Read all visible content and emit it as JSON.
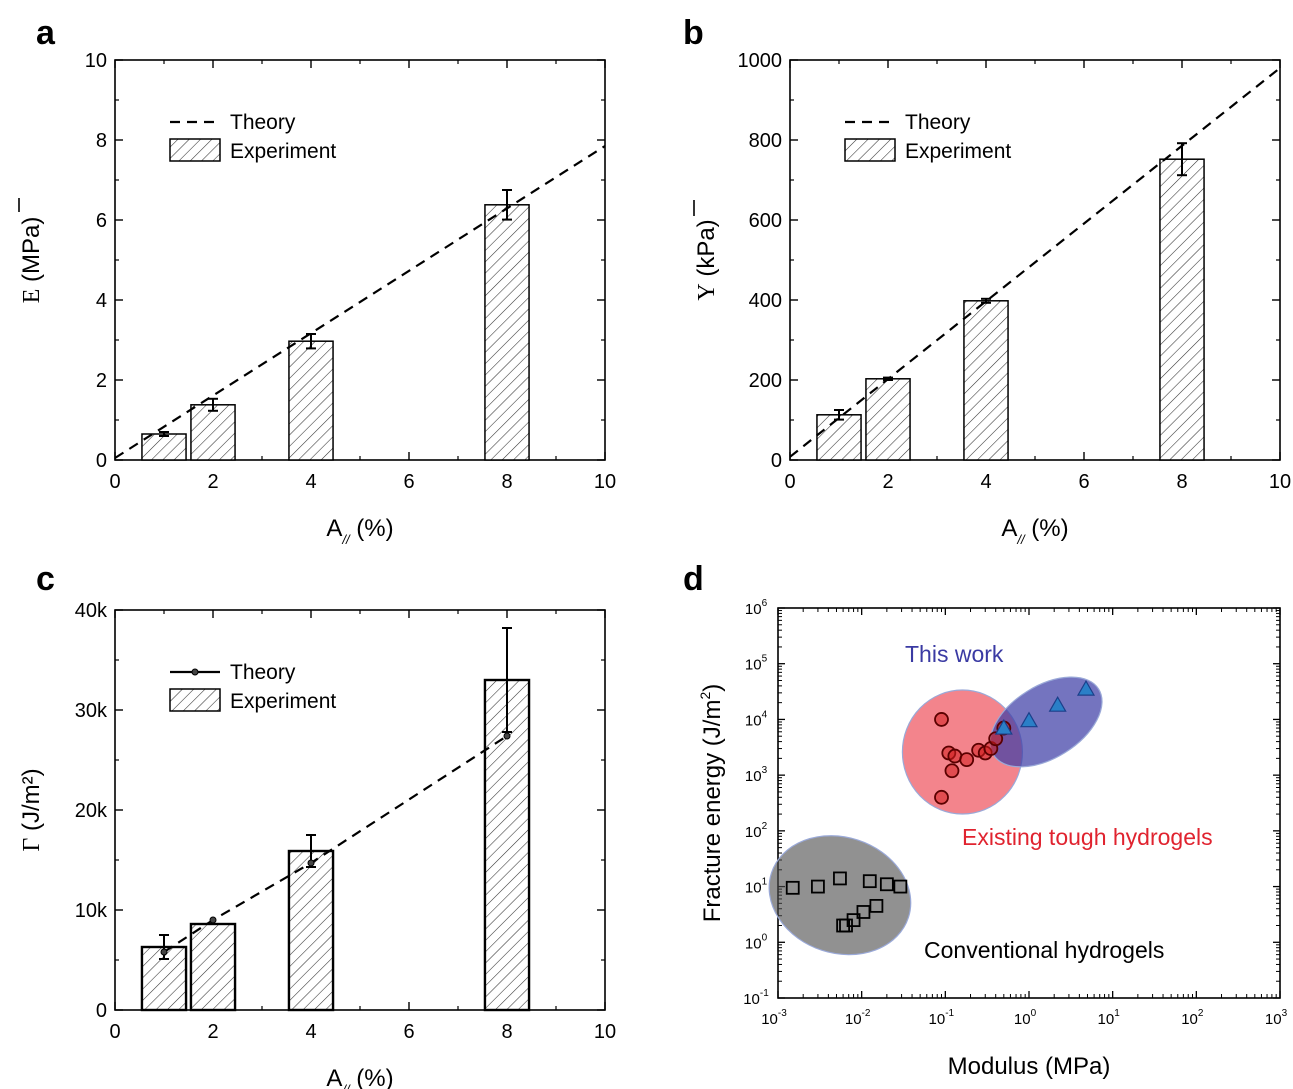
{
  "chart_data": [
    {
      "panel": "a",
      "type": "bar",
      "x": [
        1,
        2,
        4,
        8
      ],
      "values": [
        0.65,
        1.38,
        2.97,
        6.38
      ],
      "errors": [
        0.05,
        0.15,
        0.18,
        0.37
      ],
      "ylabel_symbol": "E",
      "ylabel_unit": " (MPa)",
      "xlabel_main": "A",
      "xlabel_sub": "//",
      "xlabel_unit": " (%)",
      "xlim": [
        0,
        10
      ],
      "ylim": [
        0,
        10
      ],
      "xticks": [
        0,
        2,
        4,
        6,
        8,
        10
      ],
      "yticks": [
        0,
        2,
        4,
        6,
        8,
        10
      ],
      "ytick_labels": [
        "0",
        "2",
        "4",
        "6",
        "8",
        "10"
      ],
      "theory": {
        "x": [
          0,
          10
        ],
        "y": [
          0.05,
          7.85
        ]
      },
      "legend": {
        "theory": "Theory",
        "experiment": "Experiment",
        "theory_marker": false
      }
    },
    {
      "panel": "b",
      "type": "bar",
      "x": [
        1,
        2,
        4,
        8
      ],
      "values": [
        113,
        203,
        398,
        752
      ],
      "errors": [
        12,
        3,
        5,
        40
      ],
      "ylabel_symbol": "Y",
      "ylabel_unit": " (kPa)",
      "xlabel_main": "A",
      "xlabel_sub": "//",
      "xlabel_unit": " (%)",
      "xlim": [
        0,
        10
      ],
      "ylim": [
        0,
        1000
      ],
      "xticks": [
        0,
        2,
        4,
        6,
        8,
        10
      ],
      "yticks": [
        0,
        200,
        400,
        600,
        800,
        1000
      ],
      "ytick_labels": [
        "0",
        "200",
        "400",
        "600",
        "800",
        "1000"
      ],
      "theory": {
        "x": [
          0,
          10
        ],
        "y": [
          8,
          980
        ]
      },
      "legend": {
        "theory": "Theory",
        "experiment": "Experiment",
        "theory_marker": false
      }
    },
    {
      "panel": "c",
      "type": "bar",
      "x": [
        1,
        2,
        4,
        8
      ],
      "values": [
        6300,
        8600,
        15900,
        33000
      ],
      "errors": [
        1200,
        0,
        1600,
        5200
      ],
      "ylabel_symbol": "Γ",
      "ylabel_unit": " (J/m²)",
      "xlabel_main": "A",
      "xlabel_sub": "//",
      "xlabel_unit": " (%)",
      "xlim": [
        0,
        10
      ],
      "ylim": [
        0,
        40000
      ],
      "xticks": [
        0,
        2,
        4,
        6,
        8,
        10
      ],
      "yticks": [
        0,
        10000,
        20000,
        30000,
        40000
      ],
      "ytick_labels": [
        "0",
        "10k",
        "20k",
        "30k",
        "40k"
      ],
      "theory": {
        "x": [
          1,
          2,
          4,
          8
        ],
        "y": [
          5800,
          9000,
          14700,
          27400
        ]
      },
      "legend": {
        "theory": "Theory",
        "experiment": "Experiment",
        "theory_marker": true
      }
    },
    {
      "panel": "d",
      "type": "scatter",
      "xscale": "log",
      "yscale": "log",
      "xlabel": "Modulus (MPa)",
      "ylabel_main": "Fracture energy (J/m",
      "ylabel_sup": "2",
      "ylabel_close": ")",
      "xlim": [
        0.001,
        1000
      ],
      "ylim": [
        0.1,
        1000000
      ],
      "xtick_exponents": [
        -3,
        -2,
        -1,
        0,
        1,
        2,
        3
      ],
      "ytick_exponents": [
        -1,
        0,
        1,
        2,
        3,
        4,
        5,
        6
      ],
      "series": [
        {
          "name": "Conventional hydrogels",
          "marker": "square",
          "color": "#000000",
          "x": [
            0.0015,
            0.003,
            0.0055,
            0.0065,
            0.008,
            0.0105,
            0.0125,
            0.015,
            0.02,
            0.029,
            0.006
          ],
          "y": [
            9.5,
            10,
            14,
            2,
            2.5,
            3.5,
            12.5,
            4.5,
            11,
            10,
            2
          ]
        },
        {
          "name": "Existing tough hydrogels",
          "marker": "circle",
          "color": "#d11f1f",
          "x": [
            0.09,
            0.11,
            0.12,
            0.13,
            0.18,
            0.25,
            0.3,
            0.35,
            0.4,
            0.5,
            0.09
          ],
          "y": [
            10000,
            2500,
            1200,
            2200,
            1900,
            2800,
            2500,
            3000,
            4500,
            7000,
            400
          ]
        },
        {
          "name": "This work",
          "marker": "triangle",
          "color": "#2a7fc7",
          "x": [
            0.5,
            1,
            2.2,
            4.8
          ],
          "y": [
            7000,
            9500,
            18000,
            35000
          ]
        }
      ],
      "regions": [
        {
          "name": "Conventional hydrogels",
          "color": "#4d4d4d"
        },
        {
          "name": "Existing tough hydrogels",
          "color": "#ee5560"
        },
        {
          "name": "This work",
          "color": "#3f3fa6"
        }
      ],
      "annotations": [
        {
          "text": "This work",
          "color": "#3a3aa3"
        },
        {
          "text": "Existing tough hydrogels",
          "color": "#e0232f"
        },
        {
          "text": "Conventional hydrogels",
          "color": "#000000"
        }
      ]
    }
  ],
  "panel_labels": [
    "a",
    "b",
    "c",
    "d"
  ]
}
